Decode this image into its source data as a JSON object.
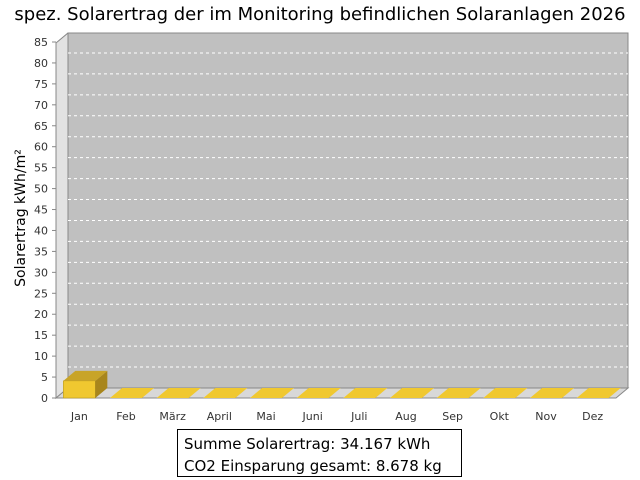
{
  "chart_data": {
    "type": "bar",
    "title": "spez. Solarertrag der im Monitoring befindlichen Solaranlagen 2026",
    "ylabel": "Solarertrag kWh/m²",
    "xlabel": "",
    "categories": [
      "Jan",
      "Feb",
      "März",
      "April",
      "Mai",
      "Juni",
      "Juli",
      "Aug",
      "Sep",
      "Okt",
      "Nov",
      "Dez"
    ],
    "values": [
      4.1,
      0,
      0,
      0,
      0,
      0,
      0,
      0,
      0,
      0,
      0,
      0
    ],
    "ylim": [
      0,
      85
    ],
    "yticks": [
      0,
      5,
      10,
      15,
      20,
      25,
      30,
      35,
      40,
      45,
      50,
      55,
      60,
      65,
      70,
      75,
      80,
      85
    ],
    "grid": true,
    "style": "3d",
    "colors": {
      "bar_front": "#f0c830",
      "bar_top": "#c8a428",
      "bar_side": "#a8861c",
      "plot_bg": "#c0c0c0",
      "wall": "#e2e2e2",
      "floor": "#d8d8d8"
    }
  },
  "summary": {
    "line1": "Summe Solarertrag: 34.167 kWh",
    "line2": "CO2 Einsparung gesamt: 8.678 kg"
  }
}
